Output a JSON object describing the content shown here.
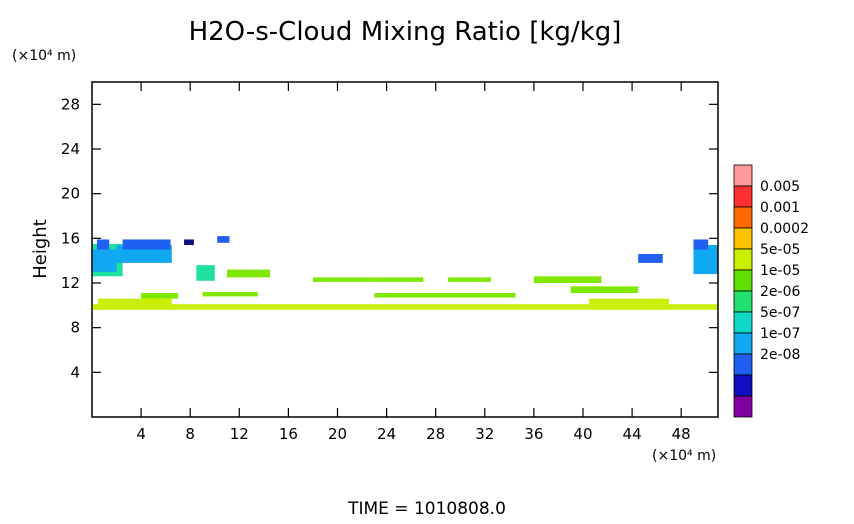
{
  "chart_data": {
    "type": "heatmap",
    "title": "H2O-s-Cloud Mixing Ratio [kg/kg]",
    "ylabel": "Height",
    "xlabel": "",
    "x_unit": "(×10⁴ m)",
    "y_unit": "(×10⁴ m)",
    "xlim": [
      0,
      51
    ],
    "ylim": [
      0,
      30
    ],
    "x_ticks": [
      4,
      8,
      12,
      16,
      20,
      24,
      28,
      32,
      36,
      40,
      44,
      48
    ],
    "y_ticks": [
      4,
      8,
      12,
      16,
      20,
      24,
      28
    ],
    "time_label": "TIME = 1010808.0",
    "legend": {
      "placement": "right",
      "levels": [
        "0.005",
        "0.001",
        "0.0002",
        "5e-05",
        "1e-05",
        "2e-06",
        "5e-07",
        "1e-07",
        "2e-08"
      ],
      "colors": [
        "#ff9a9a",
        "#ff3030",
        "#ff6a00",
        "#ffc000",
        "#c8f000",
        "#5ee000",
        "#20e070",
        "#10d8c8",
        "#10a8f0",
        "#2060f0",
        "#1010c0",
        "#8000a0"
      ]
    },
    "regions": [
      {
        "level": "2e-06",
        "color": "#20e0a0",
        "x": [
          0.0,
          2.5
        ],
        "y": [
          12.6,
          15.5
        ]
      },
      {
        "level": "5e-07",
        "color": "#10a8f0",
        "x": [
          0.0,
          2.0
        ],
        "y": [
          13.0,
          15.0
        ]
      },
      {
        "level": "1e-07",
        "color": "#2060f0",
        "x": [
          0.4,
          1.4
        ],
        "y": [
          15.0,
          15.9
        ]
      },
      {
        "level": "5e-07",
        "color": "#10a8f0",
        "x": [
          2.0,
          6.5
        ],
        "y": [
          13.8,
          15.4
        ]
      },
      {
        "level": "1e-07",
        "color": "#2060f0",
        "x": [
          2.5,
          6.4
        ],
        "y": [
          15.0,
          15.9
        ]
      },
      {
        "level": "1e-08",
        "color": "#101080",
        "x": [
          7.5,
          8.3
        ],
        "y": [
          15.4,
          15.9
        ]
      },
      {
        "level": "1e-07",
        "color": "#2060f0",
        "x": [
          10.2,
          11.2
        ],
        "y": [
          15.6,
          16.2
        ]
      },
      {
        "level": "2e-06",
        "color": "#20e0a0",
        "x": [
          8.5,
          10.0
        ],
        "y": [
          12.2,
          13.6
        ]
      },
      {
        "level": "1e-05",
        "color": "#80e800",
        "x": [
          11.0,
          14.5
        ],
        "y": [
          12.5,
          13.2
        ]
      },
      {
        "level": "1e-05",
        "color": "#80e800",
        "x": [
          4.0,
          7.0
        ],
        "y": [
          10.6,
          11.1
        ]
      },
      {
        "level": "1e-05",
        "color": "#80e800",
        "x": [
          9.0,
          13.5
        ],
        "y": [
          10.8,
          11.2
        ]
      },
      {
        "level": "1e-05",
        "color": "#80e800",
        "x": [
          18.0,
          22.5
        ],
        "y": [
          12.1,
          12.5
        ]
      },
      {
        "level": "1e-05",
        "color": "#80e800",
        "x": [
          22.5,
          27.0
        ],
        "y": [
          12.1,
          12.5
        ]
      },
      {
        "level": "1e-05",
        "color": "#80e800",
        "x": [
          29.0,
          32.5
        ],
        "y": [
          12.1,
          12.5
        ]
      },
      {
        "level": "1e-05",
        "color": "#80e800",
        "x": [
          36.0,
          41.5
        ],
        "y": [
          12.0,
          12.6
        ]
      },
      {
        "level": "1e-05",
        "color": "#80e800",
        "x": [
          39.0,
          44.5
        ],
        "y": [
          11.1,
          11.7
        ]
      },
      {
        "level": "1e-05",
        "color": "#80e800",
        "x": [
          23.0,
          34.5
        ],
        "y": [
          10.7,
          11.1
        ]
      },
      {
        "level": "5e-05",
        "color": "#c8f000",
        "x": [
          0.5,
          6.5
        ],
        "y": [
          10.0,
          10.6
        ]
      },
      {
        "level": "5e-05",
        "color": "#c8f000",
        "x": [
          0.0,
          51.0
        ],
        "y": [
          9.6,
          10.1
        ]
      },
      {
        "level": "5e-05",
        "color": "#c8f000",
        "x": [
          40.5,
          47.0
        ],
        "y": [
          10.1,
          10.6
        ]
      },
      {
        "level": "1e-07",
        "color": "#2060f0",
        "x": [
          44.5,
          46.5
        ],
        "y": [
          13.8,
          14.6
        ]
      },
      {
        "level": "5e-07",
        "color": "#10a8f0",
        "x": [
          49.0,
          51.0
        ],
        "y": [
          12.8,
          15.4
        ]
      },
      {
        "level": "1e-07",
        "color": "#2060f0",
        "x": [
          49.0,
          50.2
        ],
        "y": [
          15.0,
          15.9
        ]
      }
    ]
  }
}
